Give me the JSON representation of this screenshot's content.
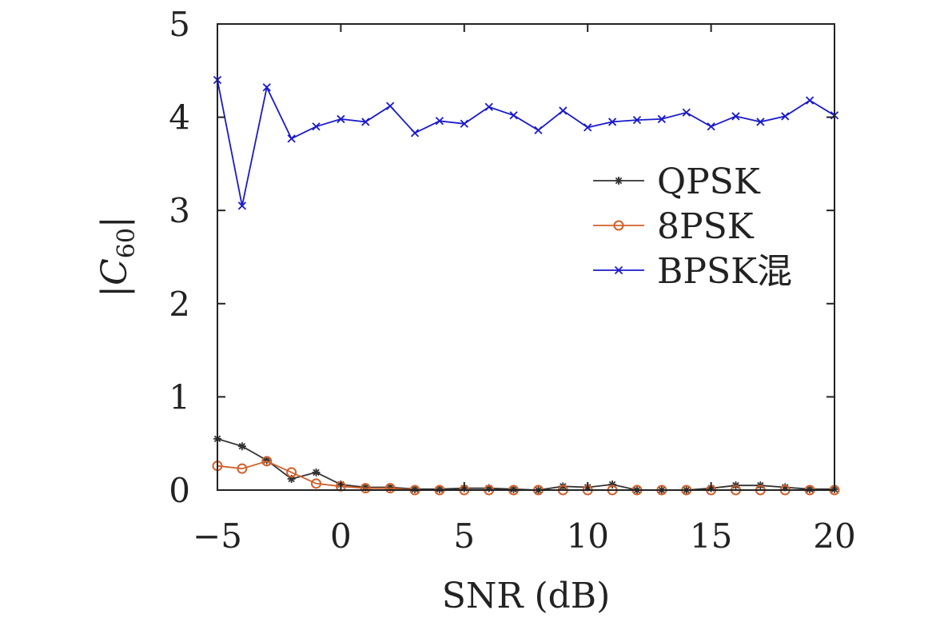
{
  "chart_data": {
    "type": "line",
    "xlabel": "SNR (dB)",
    "ylabel": "|C60|",
    "ylabel_parts": {
      "bar_left": "|",
      "symbol": "C",
      "subscript": "60",
      "bar_right": "|"
    },
    "xlim": [
      -5,
      20
    ],
    "ylim": [
      0,
      5
    ],
    "xticks": [
      -5,
      0,
      5,
      10,
      15,
      20
    ],
    "xtick_labels": [
      "−5",
      "0",
      "5",
      "10",
      "15",
      "20"
    ],
    "yticks": [
      0,
      1,
      2,
      3,
      4,
      5
    ],
    "ytick_labels": [
      "0",
      "1",
      "2",
      "3",
      "4",
      "5"
    ],
    "grid": false,
    "legend_position": "right",
    "x": [
      -5,
      -4,
      -3,
      -2,
      -1,
      0,
      1,
      2,
      3,
      4,
      5,
      6,
      7,
      8,
      9,
      10,
      11,
      12,
      13,
      14,
      15,
      16,
      17,
      18,
      19,
      20
    ],
    "series": [
      {
        "name": "QPSK",
        "color": "#333333",
        "marker": "asterisk",
        "values": [
          0.55,
          0.47,
          0.32,
          0.12,
          0.19,
          0.06,
          0.03,
          0.03,
          0.01,
          0.01,
          0.02,
          0.02,
          0.01,
          0.0,
          0.04,
          0.03,
          0.06,
          0.0,
          0.0,
          0.0,
          0.02,
          0.05,
          0.05,
          0.03,
          0.01,
          0.01
        ]
      },
      {
        "name": "8PSK",
        "color": "#d2602a",
        "marker": "circle",
        "values": [
          0.26,
          0.23,
          0.31,
          0.19,
          0.07,
          0.04,
          0.02,
          0.02,
          0.0,
          0.0,
          0.0,
          0.0,
          0.0,
          0.0,
          0.0,
          0.0,
          0.0,
          0.0,
          0.0,
          0.0,
          0.0,
          0.0,
          0.0,
          0.0,
          0.0,
          0.0
        ]
      },
      {
        "name": "BPSK混",
        "color": "#1a1acc",
        "marker": "x",
        "values": [
          4.4,
          3.05,
          4.32,
          3.77,
          3.9,
          3.98,
          3.95,
          4.12,
          3.83,
          3.96,
          3.93,
          4.11,
          4.02,
          3.86,
          4.07,
          3.89,
          3.95,
          3.97,
          3.98,
          4.05,
          3.9,
          4.01,
          3.95,
          4.01,
          4.18,
          4.02
        ]
      }
    ]
  }
}
